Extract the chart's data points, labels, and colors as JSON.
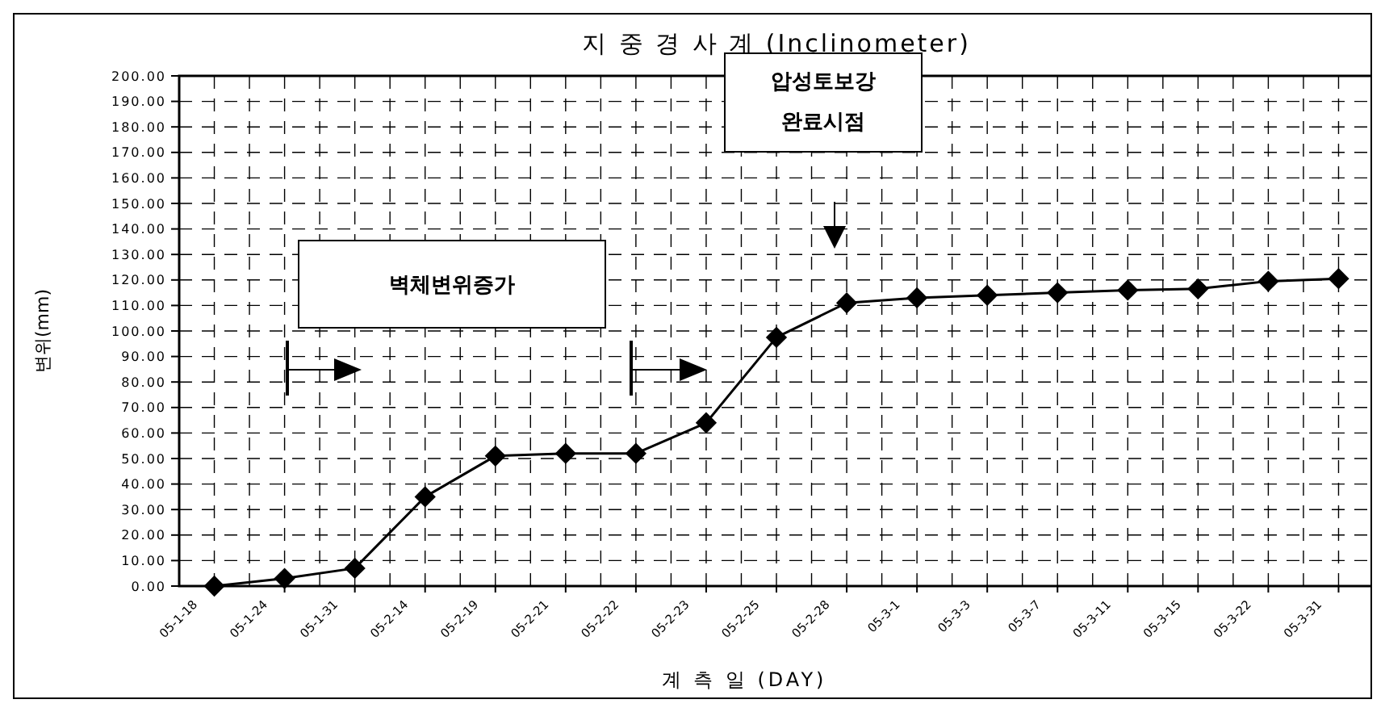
{
  "chart_data": {
    "type": "line",
    "title": "지 중 경 사 계 (Inclinometer)",
    "xlabel": "계 측 일 (DAY)",
    "ylabel": "변위(mm)",
    "categories": [
      "05-1-18",
      "05-1-24",
      "05-1-31",
      "05-2-14",
      "05-2-19",
      "05-2-21",
      "05-2-22",
      "05-2-23",
      "05-2-25",
      "05-2-28",
      "05-3-1",
      "05-3-3",
      "05-3-7",
      "05-3-11",
      "05-3-15",
      "05-3-22",
      "05-3-31"
    ],
    "series": [
      {
        "color": "#000000",
        "values": [
          0,
          3,
          7,
          35,
          51,
          52,
          52,
          64,
          97.5,
          111,
          113,
          114,
          115,
          116,
          116.5,
          119.5,
          120.5
        ]
      }
    ],
    "ylim": [
      0,
      200
    ],
    "yticks": [
      {
        "value": 0,
        "label": "0.00"
      },
      {
        "value": 10,
        "label": "10.00"
      },
      {
        "value": 20,
        "label": "20.00"
      },
      {
        "value": 30,
        "label": "30.00"
      },
      {
        "value": 40,
        "label": "40.00"
      },
      {
        "value": 50,
        "label": "50.00"
      },
      {
        "value": 60,
        "label": "60.00"
      },
      {
        "value": 70,
        "label": "70.00"
      },
      {
        "value": 80,
        "label": "80.00"
      },
      {
        "value": 90,
        "label": "90.00"
      },
      {
        "value": 100,
        "label": "100.00"
      },
      {
        "value": 110,
        "label": "110.00"
      },
      {
        "value": 120,
        "label": "120.00"
      },
      {
        "value": 130,
        "label": "130.00"
      },
      {
        "value": 140,
        "label": "140.00"
      },
      {
        "value": 150,
        "label": "150.00"
      },
      {
        "value": 160,
        "label": "160.00"
      },
      {
        "value": 170,
        "label": "170.00"
      },
      {
        "value": 180,
        "label": "180.00"
      },
      {
        "value": 190,
        "label": "190.00"
      },
      {
        "value": 200,
        "label": "200.00"
      }
    ],
    "grid": true,
    "marker": "diamond",
    "line_style": "solid",
    "annotations": [
      "벽체변위증가",
      "압성토보강\n완료시점"
    ]
  }
}
